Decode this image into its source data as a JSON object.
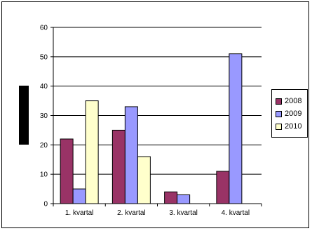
{
  "chart_data": {
    "type": "bar",
    "categories": [
      "1. kvartal",
      "2. kvartal",
      "3. kvartal",
      "4. kvartal"
    ],
    "series": [
      {
        "name": "2008",
        "values": [
          22,
          25,
          4,
          11
        ],
        "color": "#993366"
      },
      {
        "name": "2009",
        "values": [
          5,
          33,
          3,
          51
        ],
        "color": "#9999FF"
      },
      {
        "name": "2010",
        "values": [
          35,
          16,
          0,
          0
        ],
        "color": "#FFFFCC"
      }
    ],
    "ylim": [
      0,
      60
    ],
    "yticks": [
      "0",
      "10",
      "20",
      "30",
      "40",
      "50",
      "60"
    ],
    "grid": true,
    "legend": "right",
    "title": "",
    "xlabel": "",
    "ylabel": ""
  }
}
